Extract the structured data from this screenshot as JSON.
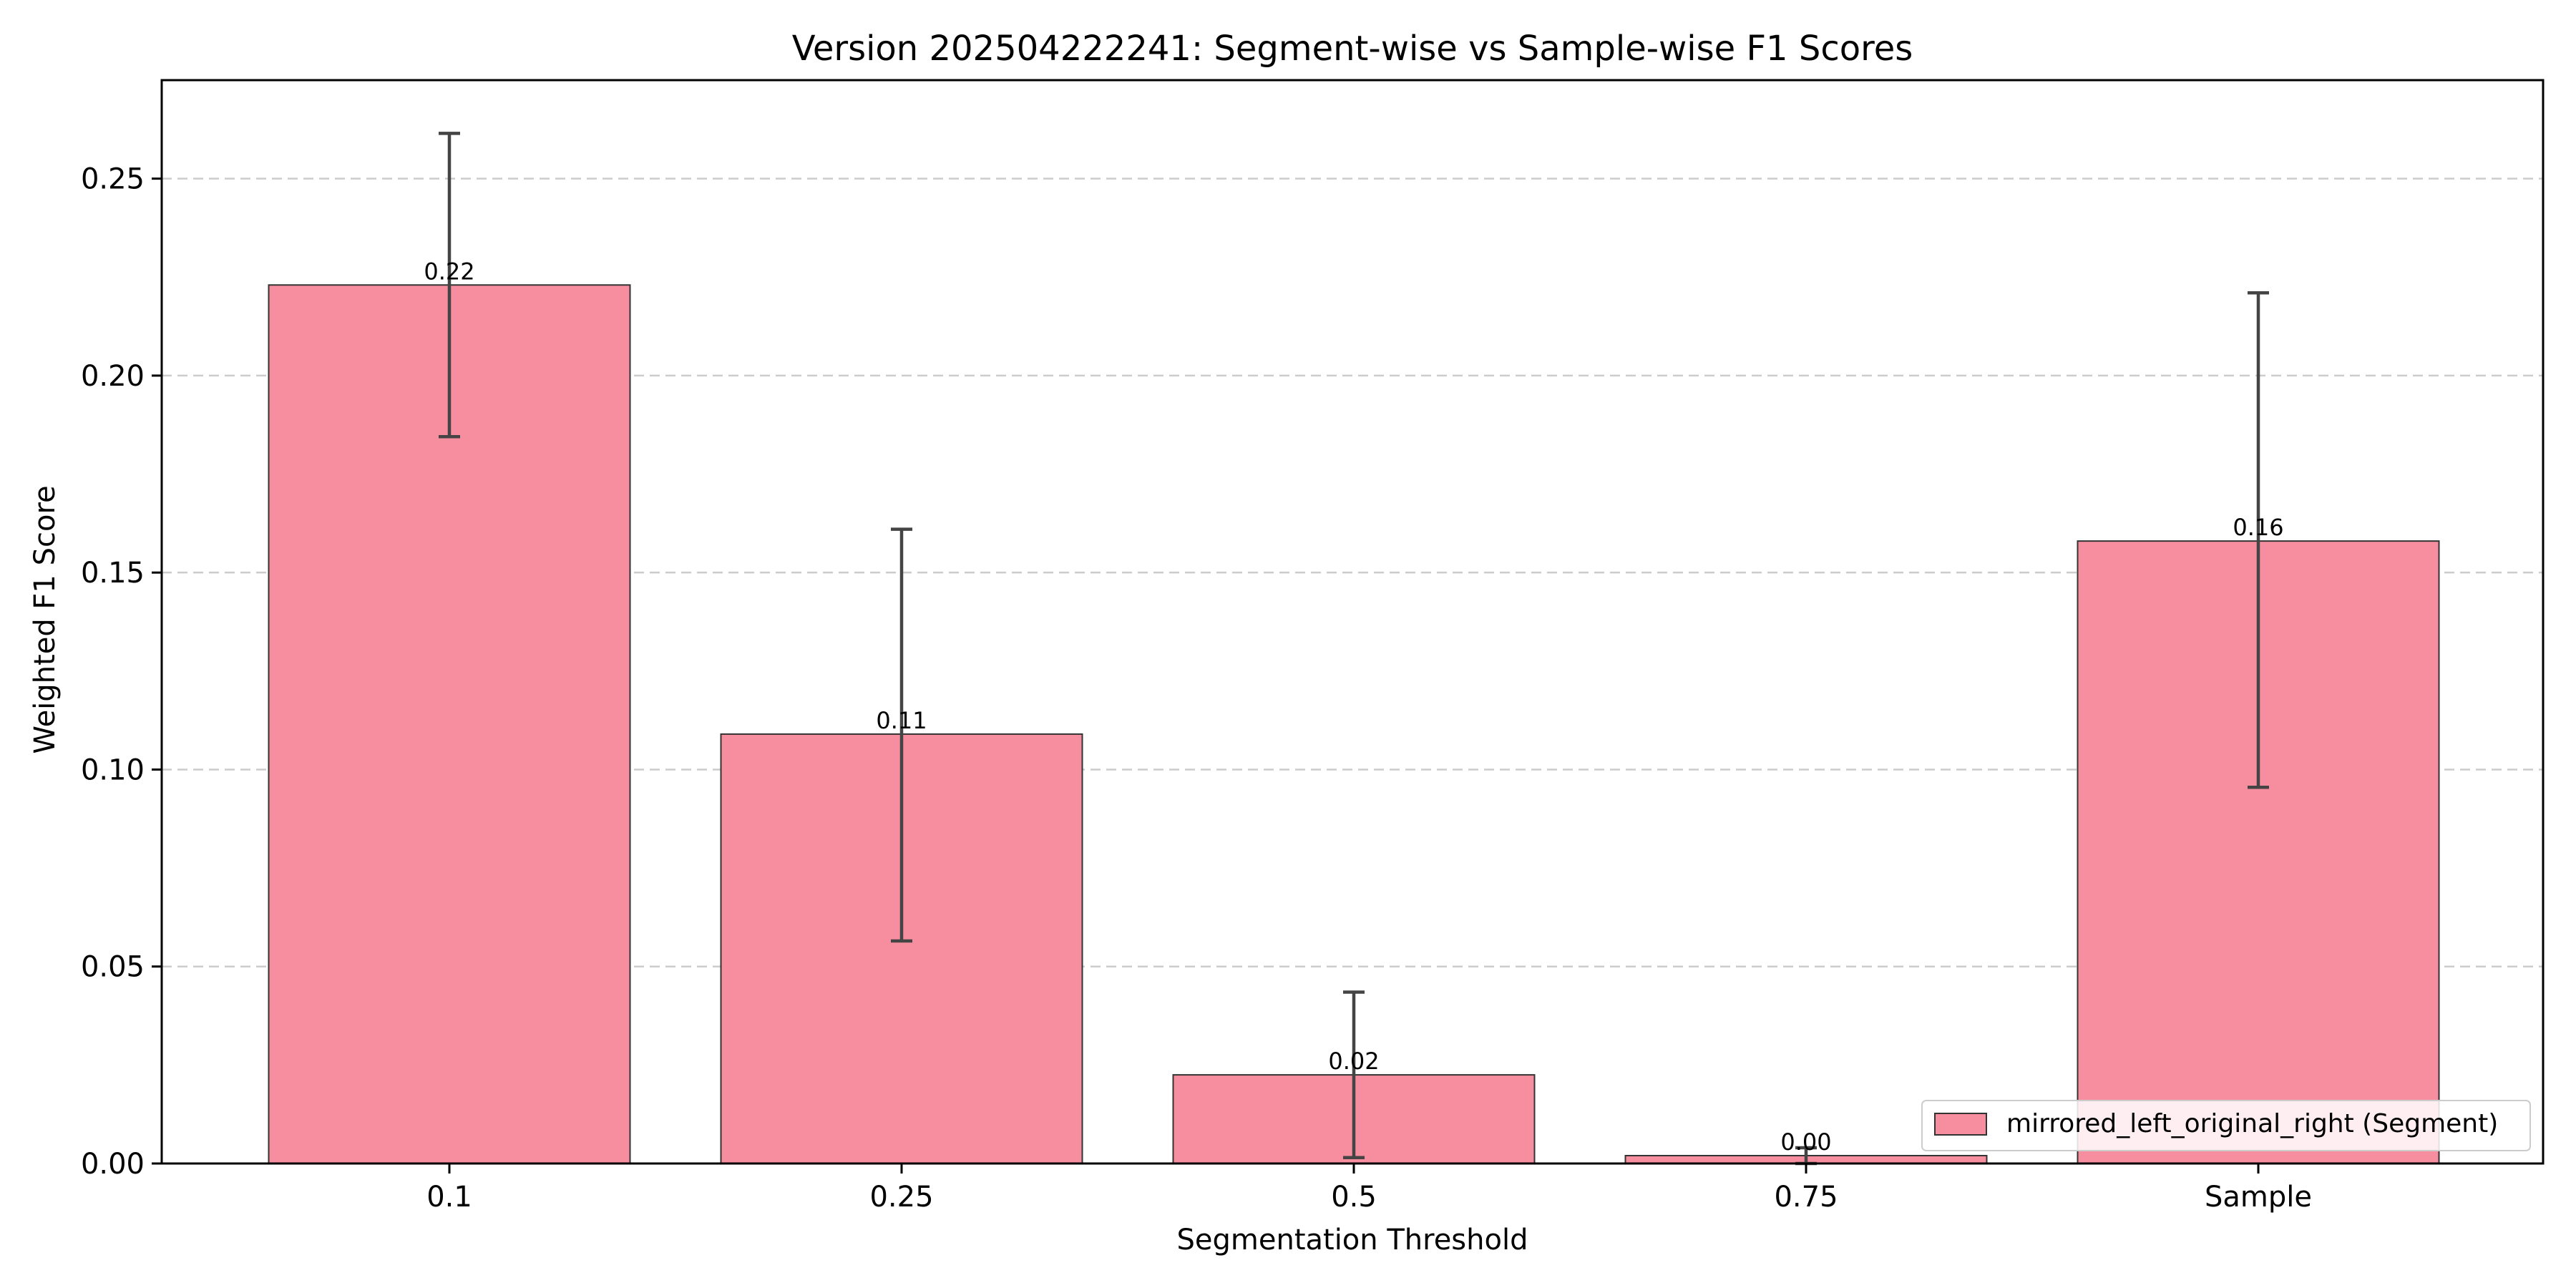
{
  "chart_data": {
    "type": "bar",
    "title": "Version 202504222241: Segment-wise vs Sample-wise F1 Scores",
    "xlabel": "Segmentation Threshold",
    "ylabel": "Weighted F1 Score",
    "categories": [
      "0.1",
      "0.25",
      "0.5",
      "0.75",
      "Sample"
    ],
    "series": [
      {
        "name": "mirrored_left_original_right (Segment)",
        "values": [
          0.223,
          0.109,
          0.0225,
          0.002,
          0.158
        ],
        "error_low": [
          0.1845,
          0.0565,
          0.0015,
          0.0,
          0.0955
        ],
        "error_high": [
          0.2615,
          0.161,
          0.0435,
          0.004,
          0.221
        ],
        "labels": [
          "0.22",
          "0.11",
          "0.02",
          "0.00",
          "0.16"
        ]
      }
    ],
    "ylim": [
      0,
      0.275
    ],
    "yticks": [
      0,
      0.05,
      0.1,
      0.15,
      0.2,
      0.25
    ],
    "ytick_labels": [
      "0.00",
      "0.05",
      "0.10",
      "0.15",
      "0.20",
      "0.25"
    ],
    "grid": "y-dashed",
    "legend_position": "lower-right",
    "colors": {
      "bar_fill": "#f78ea0",
      "bar_edge": "#333333",
      "error_bar": "#444444",
      "grid": "#cccccc"
    }
  }
}
